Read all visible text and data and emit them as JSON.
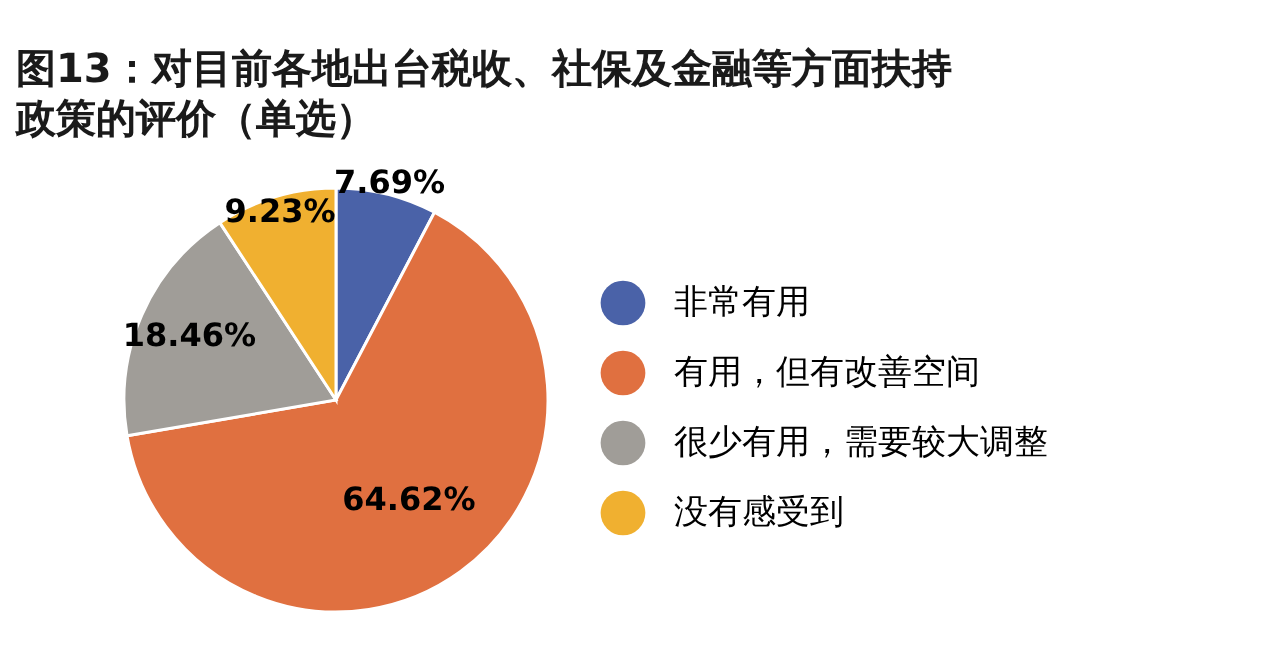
{
  "chart_data": {
    "type": "pie",
    "title": "图13：对目前各地出台税收、社保及金融等方面扶持政策的评价（单选）",
    "categories": [
      "非常有用",
      "有用，但有改善空间",
      "很少有用，需要较大调整",
      "没有感受到"
    ],
    "values": [
      7.69,
      64.62,
      18.46,
      9.23
    ],
    "colors": [
      "#4a62a8",
      "#e07040",
      "#a09d98",
      "#f0b030"
    ],
    "value_labels": [
      "7.69%",
      "64.62%",
      "18.46%",
      "9.23%"
    ],
    "legend": "right"
  }
}
